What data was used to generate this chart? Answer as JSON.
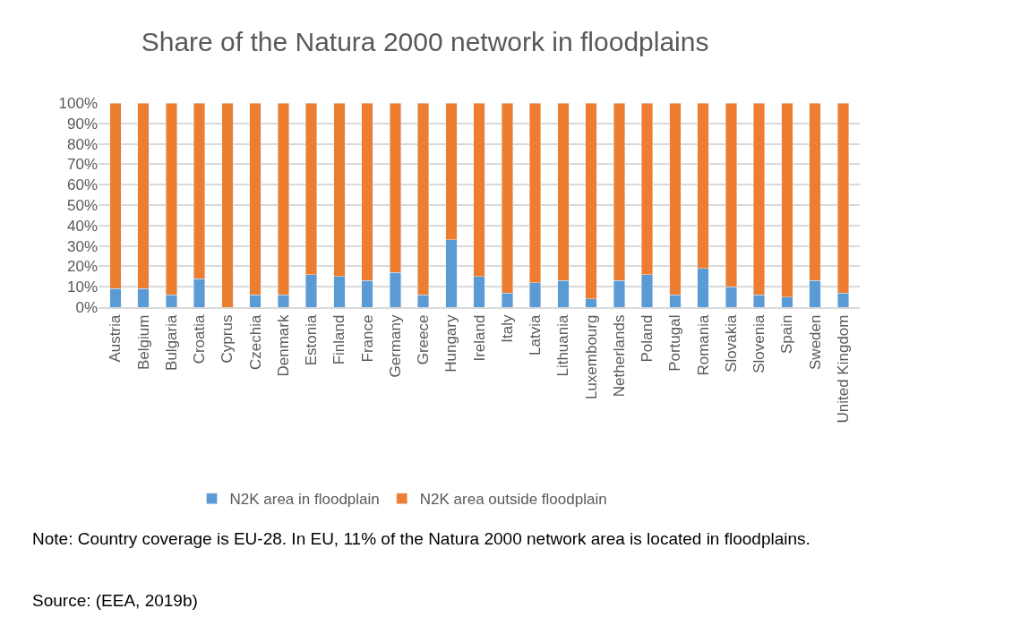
{
  "chart_data": {
    "type": "bar",
    "title": "Share of the Natura 2000 network in floodplains",
    "categories": [
      "Austria",
      "Belgium",
      "Bulgaria",
      "Croatia",
      "Cyprus",
      "Czechia",
      "Denmark",
      "Estonia",
      "Finland",
      "France",
      "Germany",
      "Greece",
      "Hungary",
      "Ireland",
      "Italy",
      "Latvia",
      "Lithuania",
      "Luxembourg",
      "Netherlands",
      "Poland",
      "Portugal",
      "Romania",
      "Slovakia",
      "Slovenia",
      "Spain",
      "Sweden",
      "United Kingdom"
    ],
    "stacked": true,
    "series": [
      {
        "name": "N2K area in floodplain",
        "color": "#5b9bd5",
        "values": [
          9,
          9,
          6,
          14,
          0,
          6,
          6,
          16,
          15,
          13,
          17,
          6,
          33,
          15,
          7,
          12,
          13,
          4,
          13,
          16,
          6,
          19,
          10,
          6,
          5,
          13,
          7
        ]
      },
      {
        "name": "N2K area outside floodplain",
        "color": "#ed7d31",
        "values": [
          91,
          91,
          94,
          86,
          100,
          94,
          94,
          84,
          85,
          87,
          83,
          94,
          67,
          85,
          93,
          88,
          87,
          96,
          87,
          84,
          94,
          81,
          90,
          94,
          95,
          87,
          93
        ]
      }
    ],
    "ylim": [
      0,
      100
    ],
    "yticks": [
      {
        "value": 0,
        "label": "0%"
      },
      {
        "value": 10,
        "label": "10%"
      },
      {
        "value": 20,
        "label": "20%"
      },
      {
        "value": 30,
        "label": "30%"
      },
      {
        "value": 40,
        "label": "40%"
      },
      {
        "value": 50,
        "label": "50%"
      },
      {
        "value": 60,
        "label": "60%"
      },
      {
        "value": 70,
        "label": "70%"
      },
      {
        "value": 80,
        "label": "80%"
      },
      {
        "value": 90,
        "label": "90%"
      },
      {
        "value": 100,
        "label": "100%"
      }
    ],
    "grid": "y",
    "legend": "bottom",
    "annotations": [
      "Note: Country coverage is EU-28. In EU, 11% of the Natura 2000 network area is located in floodplains.",
      "Source: (EEA, 2019b)"
    ]
  }
}
